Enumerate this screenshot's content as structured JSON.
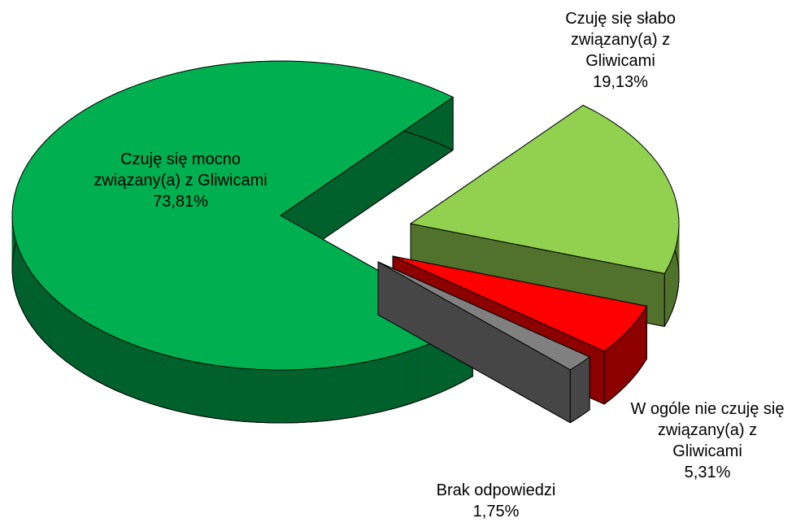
{
  "chart_data": {
    "type": "pie",
    "categories": [
      "Czuję się słabo związany(a) z Gliwicami",
      "W ogóle nie czuję się związany(a) z Gliwicami",
      "Brak odpowiedzi",
      "Czuję się mocno związany(a) z Gliwicami"
    ],
    "values": [
      19.13,
      5.31,
      1.75,
      73.81
    ],
    "value_labels": [
      "19,13%",
      "5,31%",
      "1,75%",
      "73,81%"
    ],
    "colors": [
      "#92d050",
      "#ff0000",
      "#808080",
      "#00b050"
    ]
  }
}
